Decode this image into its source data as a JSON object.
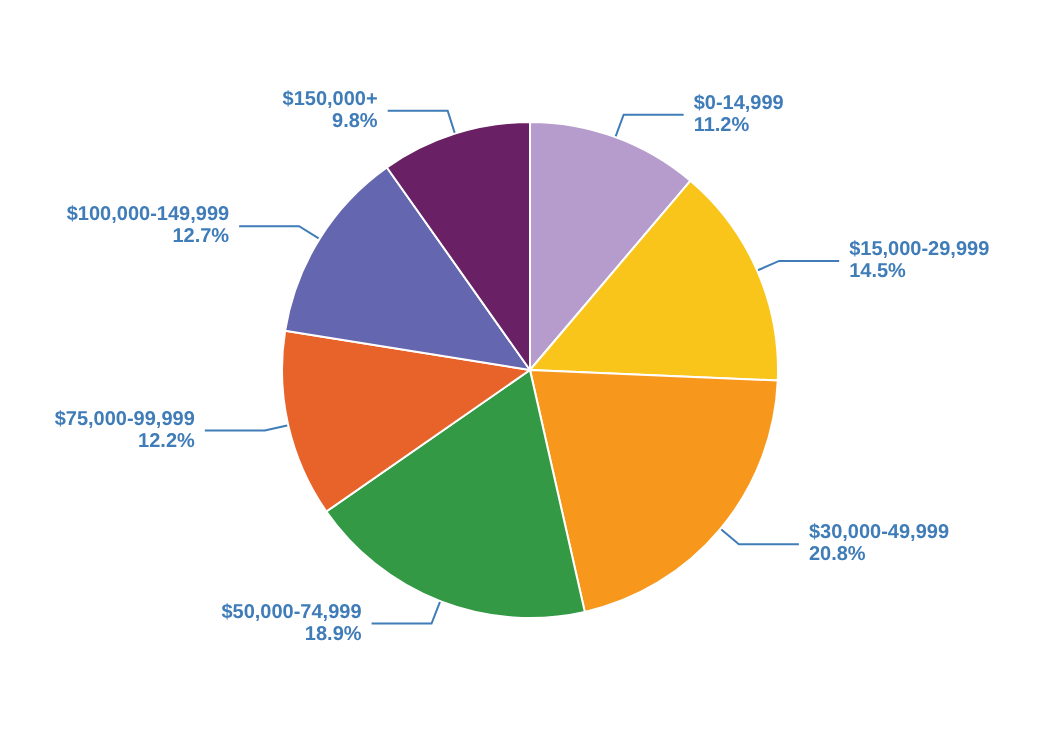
{
  "chart_data": {
    "type": "pie",
    "categories": [
      "$0-14,999",
      "$15,000-29,999",
      "$30,000-49,999",
      "$50,000-74,999",
      "$75,000-99,999",
      "$100,000-149,999",
      "$150,000+"
    ],
    "values": [
      11.2,
      14.5,
      20.8,
      18.9,
      12.2,
      12.7,
      9.8
    ],
    "value_labels": [
      "11.2%",
      "14.5%",
      "20.8%",
      "18.9%",
      "12.2%",
      "12.7%",
      "9.8%"
    ],
    "colors": [
      "#b59ccc",
      "#f9c51b",
      "#f7981d",
      "#339944",
      "#e8632a",
      "#6467b0",
      "#6a2064"
    ],
    "legend": false
  }
}
